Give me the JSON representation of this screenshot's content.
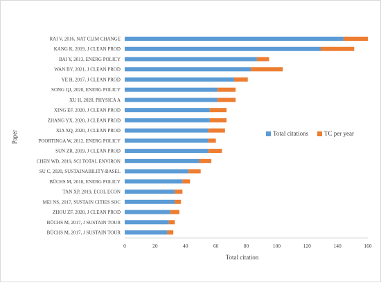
{
  "chart_data": {
    "type": "bar",
    "orientation": "horizontal",
    "stacked": true,
    "categories": [
      "RAI V, 2016, NAT CLIM CHANGE",
      "KANG K, 2019, J CLEAN PROD",
      "BAI Y, 2013, ENERG POLICY",
      "WAN BY, 2021, J CLEAN PROD",
      "YE H, 2017, J CLEAN PROD",
      "SONG QJ, 2020, ENERG POLICY",
      "XU H, 2020, PHYSICA A",
      "XING EF, 2020, J CLEAN PROD",
      "ZHANG YX, 2020, J CLEAN PROD",
      "XIA XQ, 2020, J CLEAN PROD",
      "POORTINGA W, 2012, ENERG POLICY",
      "SUN ZR, 2019, J CLEAN PROD",
      "CHEN WD, 2019, SCI TOTAL ENVIRON",
      "SU C, 2020, SUSTAINABILITY-BASEL",
      "BÜCHS M, 2018, ENERG POLICY",
      "TAN XP, 2019, ECOL ECON",
      "MEI NS, 2017, SUSTAIN CITIES SOC",
      "ZHOU ZF, 2020, J CLEAN PROD",
      "BÜCHS M, 2017, J SUSTAIN TOUR",
      "BÜCHS M, 2017, J SUSTAIN TOUR"
    ],
    "series": [
      {
        "name": "Total citations",
        "color": "#5b9bd5",
        "values": [
          144,
          129,
          87,
          83,
          72,
          61,
          61,
          56,
          56,
          55,
          55,
          55,
          49,
          42,
          38,
          33,
          33,
          30,
          29,
          28
        ]
      },
      {
        "name": "TC per year",
        "color": "#ed7d31",
        "values": [
          16,
          22,
          8,
          21,
          9,
          12,
          12,
          11,
          11,
          11,
          5,
          9,
          8,
          8,
          5,
          5,
          4,
          6,
          4,
          4
        ]
      }
    ],
    "xlabel": "Total citation",
    "ylabel": "Paper",
    "xlim": [
      0,
      160
    ],
    "x_ticks": [
      "0",
      "20",
      "40",
      "60",
      "80",
      "100",
      "120",
      "140",
      "160"
    ],
    "grid": false,
    "legend_position": "right"
  }
}
